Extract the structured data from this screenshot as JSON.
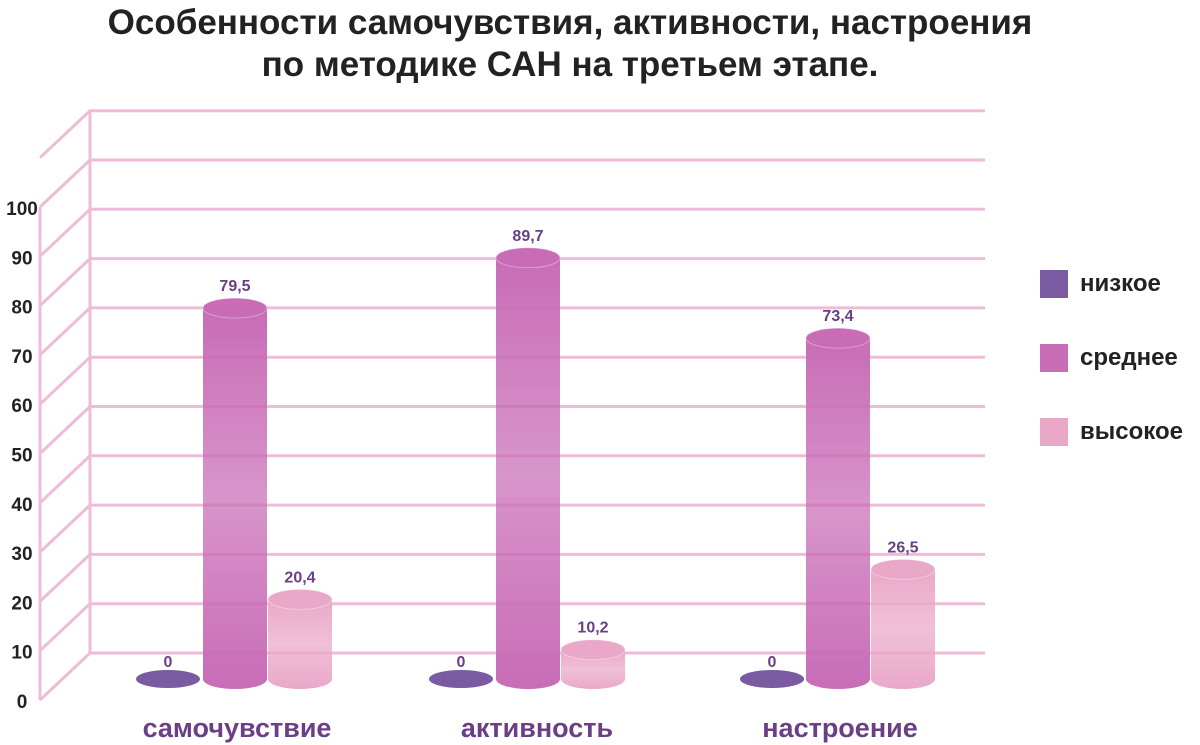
{
  "title": {
    "line1": "Особенности самочувствия, активности, настроения",
    "line2": "по методике САН на третьем этапе."
  },
  "colors": {
    "low": "#7a5aa0",
    "medium": "#c86cb6",
    "high": "#eaa8c8",
    "grid": "#eebcd8",
    "label": "#6b3f86",
    "text": "#222222"
  },
  "legend": [
    {
      "key": "low",
      "label": "низкое"
    },
    {
      "key": "medium",
      "label": "среднее"
    },
    {
      "key": "high",
      "label": "высокое"
    }
  ],
  "chart_data": {
    "type": "bar",
    "categories": [
      "самочувствие",
      "активность",
      "настроение"
    ],
    "series": [
      {
        "name": "низкое",
        "values": [
          0,
          0,
          0
        ]
      },
      {
        "name": "среднее",
        "values": [
          79.5,
          89.7,
          73.4
        ]
      },
      {
        "name": "высокое",
        "values": [
          20.4,
          10.2,
          26.5
        ]
      }
    ],
    "data_labels": [
      [
        "0",
        "0",
        "0"
      ],
      [
        "79,5",
        "89,7",
        "73,4"
      ],
      [
        "20,4",
        "10,2",
        "26,5"
      ]
    ],
    "yticks": [
      "0",
      "10",
      "20",
      "30",
      "40",
      "50",
      "60",
      "70",
      "80",
      "90",
      "100"
    ],
    "ylim": [
      0,
      110
    ],
    "grid": true,
    "legend_position": "right"
  }
}
